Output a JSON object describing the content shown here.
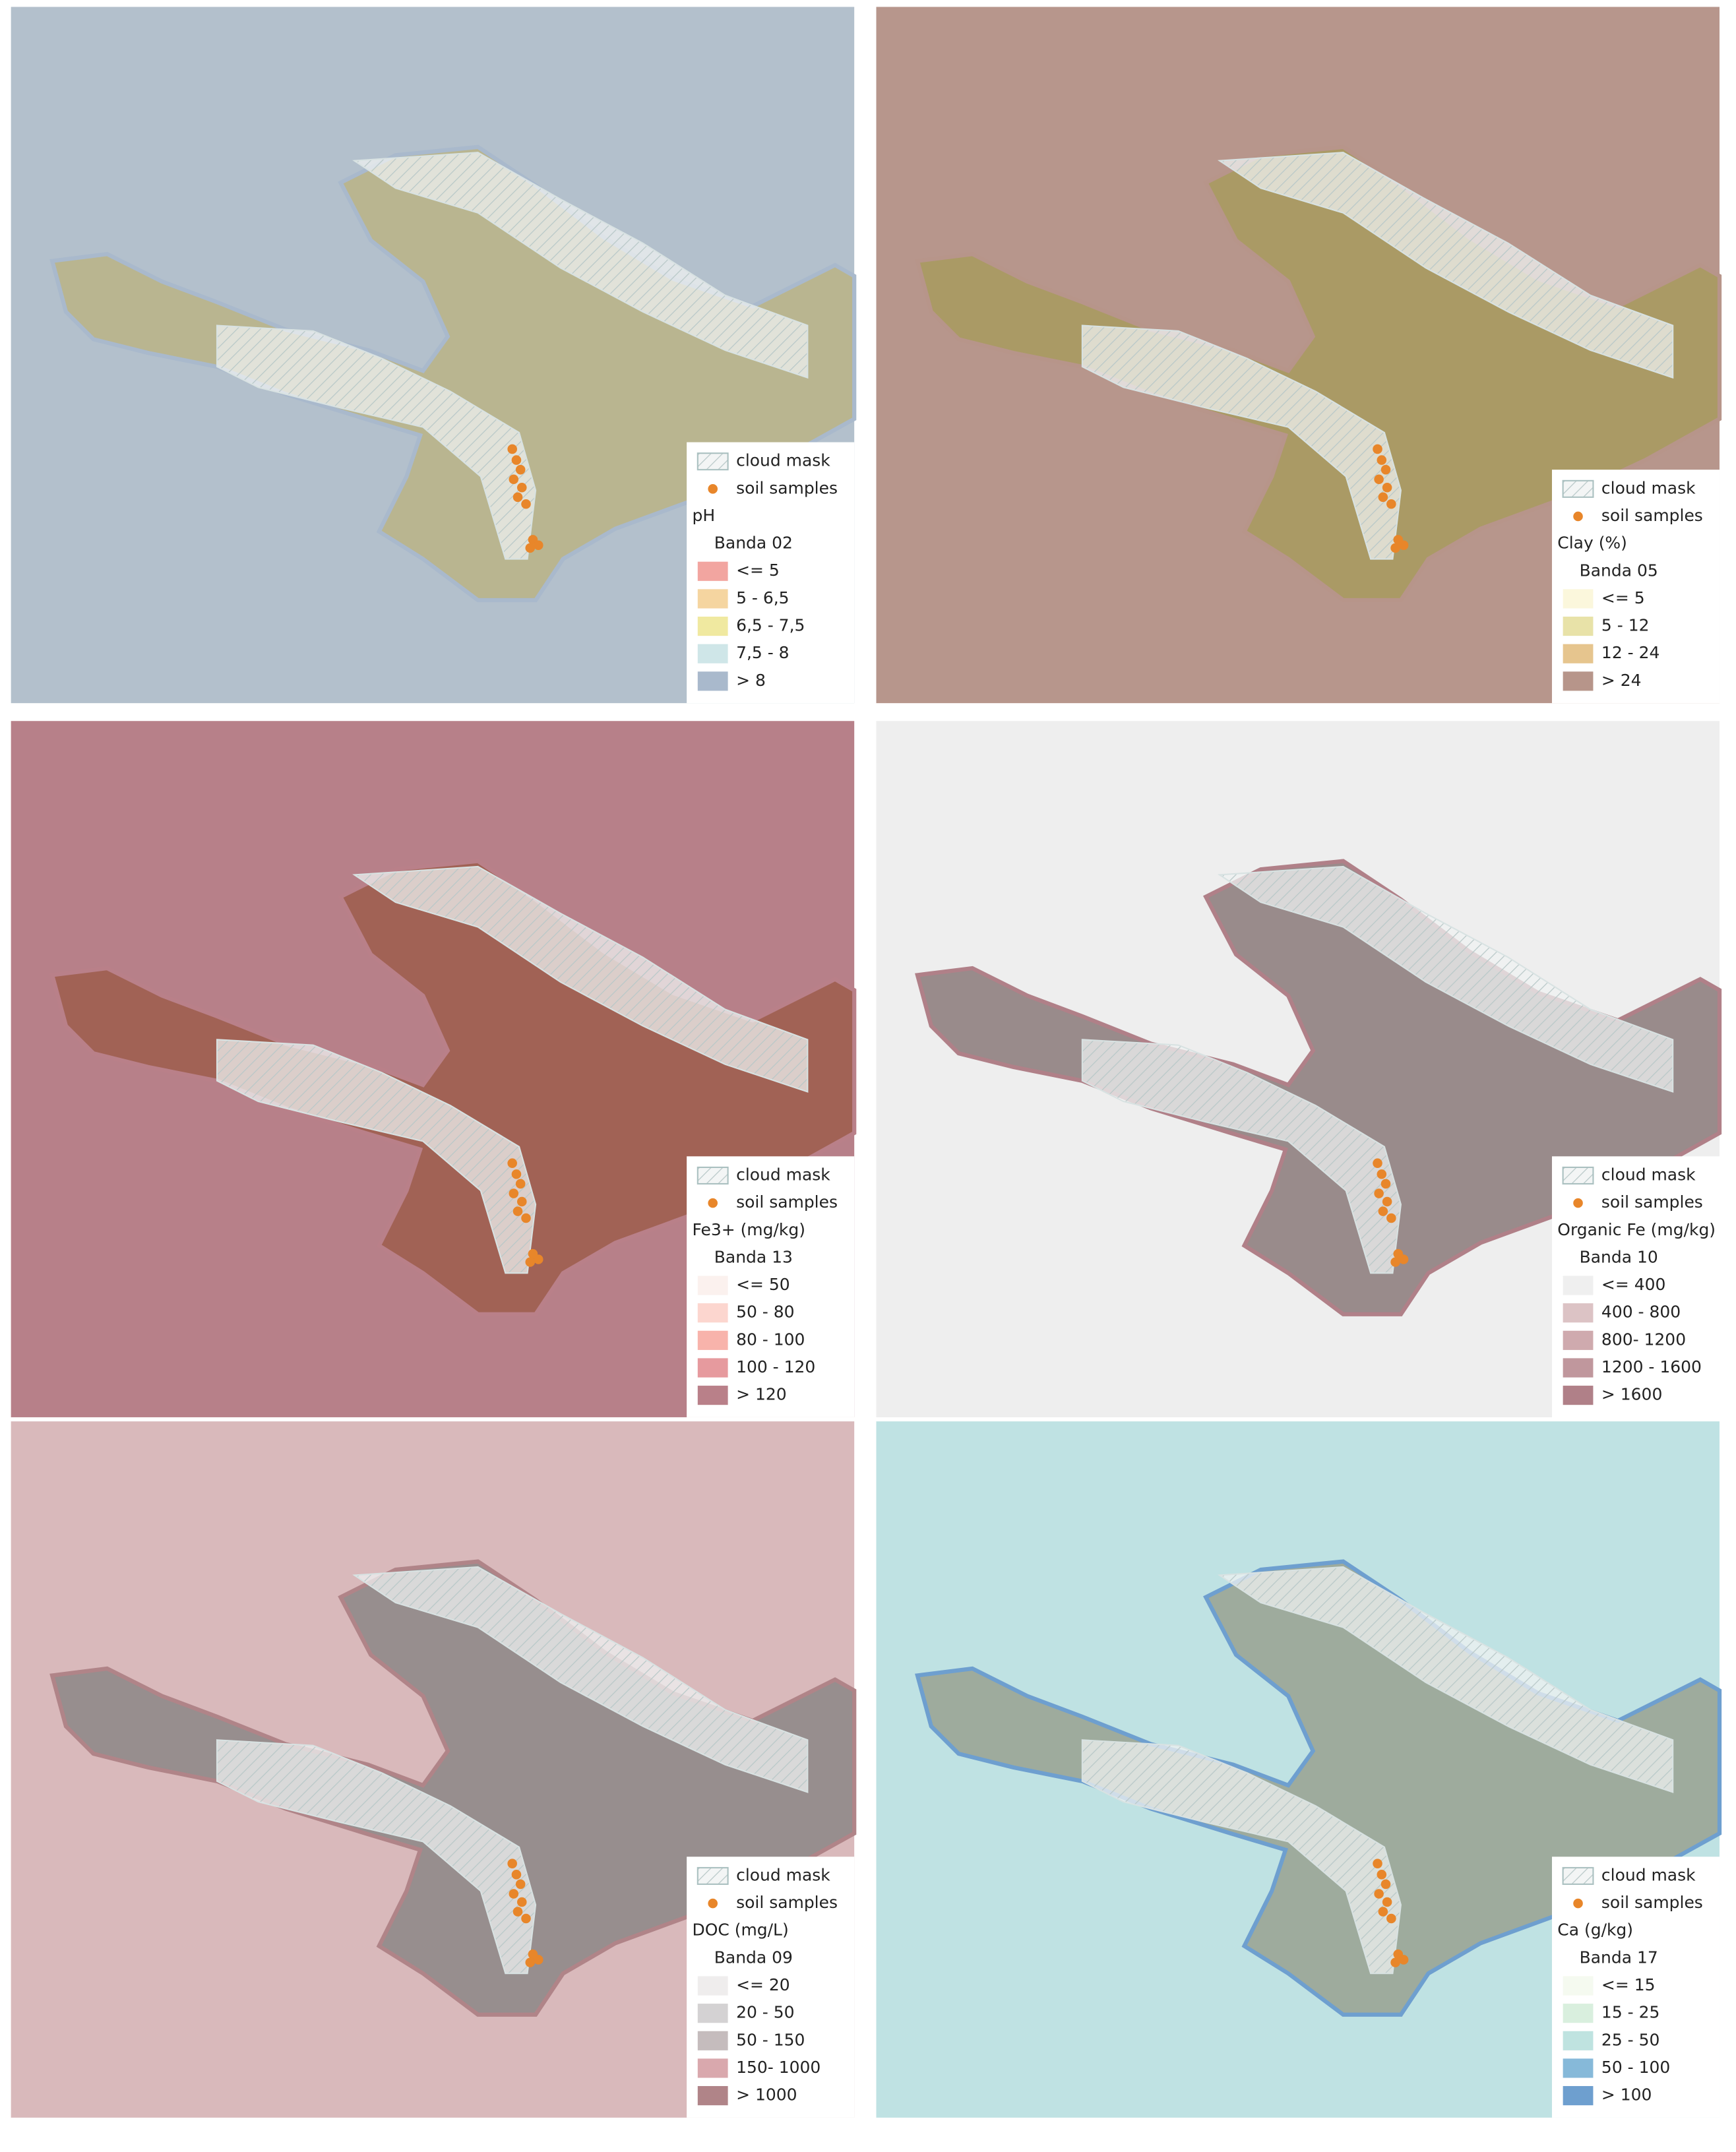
{
  "panels": [
    {
      "background": "#b3c0cc",
      "land": "#b9b48a",
      "legend": {
        "cloud_mask": "cloud mask",
        "soil_samples": "soil samples",
        "title": "pH",
        "band": "Banda 02",
        "classes": [
          {
            "label": "<= 5",
            "color": "#f2a5a0"
          },
          {
            "label": "5 - 6,5",
            "color": "#f5d5a0"
          },
          {
            "label": "6,5 - 7,5",
            "color": "#f0e9a0"
          },
          {
            "label": "7,5 - 8",
            "color": "#cfe6e8"
          },
          {
            "label": "> 8",
            "color": "#a9b9cc"
          }
        ]
      }
    },
    {
      "background": "#b7968c",
      "land": "#a99a60",
      "legend": {
        "cloud_mask": "cloud mask",
        "soil_samples": "soil samples",
        "title": "Clay (%)",
        "band": "Banda 05",
        "classes": [
          {
            "label": "<= 5",
            "color": "#fbf7dc"
          },
          {
            "label": "5 - 12",
            "color": "#e8e2a8"
          },
          {
            "label": "12 - 24",
            "color": "#e6c58e"
          },
          {
            "label": "> 24",
            "color": "#b7958a"
          }
        ]
      }
    },
    {
      "background": "#b78089",
      "land": "#9e5e50",
      "legend": {
        "cloud_mask": "cloud mask",
        "soil_samples": "soil samples",
        "title": "Fe3+ (mg/kg)",
        "band": "Banda 13",
        "classes": [
          {
            "label": "<= 50",
            "color": "#fbf1ee"
          },
          {
            "label": "50 - 80",
            "color": "#fcd6cf"
          },
          {
            "label": "80 - 100",
            "color": "#f8b3ab"
          },
          {
            "label": "100 - 120",
            "color": "#e69a9e"
          },
          {
            "label": "> 120",
            "color": "#b98089"
          }
        ]
      }
    },
    {
      "background": "#eeeeee",
      "land": "#8f7f80",
      "legend": {
        "cloud_mask": "cloud mask",
        "soil_samples": "soil samples",
        "title": "Organic Fe (mg/kg)",
        "band": "Banda 10",
        "classes": [
          {
            "label": "<= 400",
            "color": "#efefef"
          },
          {
            "label": "400 - 800",
            "color": "#dcc3c5"
          },
          {
            "label": "800- 1200",
            "color": "#cfaaae"
          },
          {
            "label": "1200 - 1600",
            "color": "#c0979d"
          },
          {
            "label": "> 1600",
            "color": "#b08088"
          }
        ]
      }
    },
    {
      "background": "#d9b9bb",
      "land": "#8f8a8a",
      "legend": {
        "cloud_mask": "cloud mask",
        "soil_samples": "soil samples",
        "title": "DOC (mg/L)",
        "band": "Banda 09",
        "classes": [
          {
            "label": "<= 20",
            "color": "#efeded"
          },
          {
            "label": "20 - 50",
            "color": "#d4d2d3"
          },
          {
            "label": "50 - 150",
            "color": "#c5bcbd"
          },
          {
            "label": "150- 1000",
            "color": "#d9a8ad"
          },
          {
            "label": "> 1000",
            "color": "#b08488"
          }
        ]
      }
    },
    {
      "background": "#bfe2e3",
      "land": "#9aa595",
      "legend": {
        "cloud_mask": "cloud mask",
        "soil_samples": "soil samples",
        "title": "Ca (g/kg)",
        "band": "Banda 17",
        "classes": [
          {
            "label": "<= 15",
            "color": "#f5faf0"
          },
          {
            "label": "15 - 25",
            "color": "#d9efde"
          },
          {
            "label": "25 - 50",
            "color": "#bfe3e0"
          },
          {
            "label": "50 - 100",
            "color": "#86b9d9"
          },
          {
            "label": "> 100",
            "color": "#6e9fcf"
          }
        ]
      }
    }
  ]
}
